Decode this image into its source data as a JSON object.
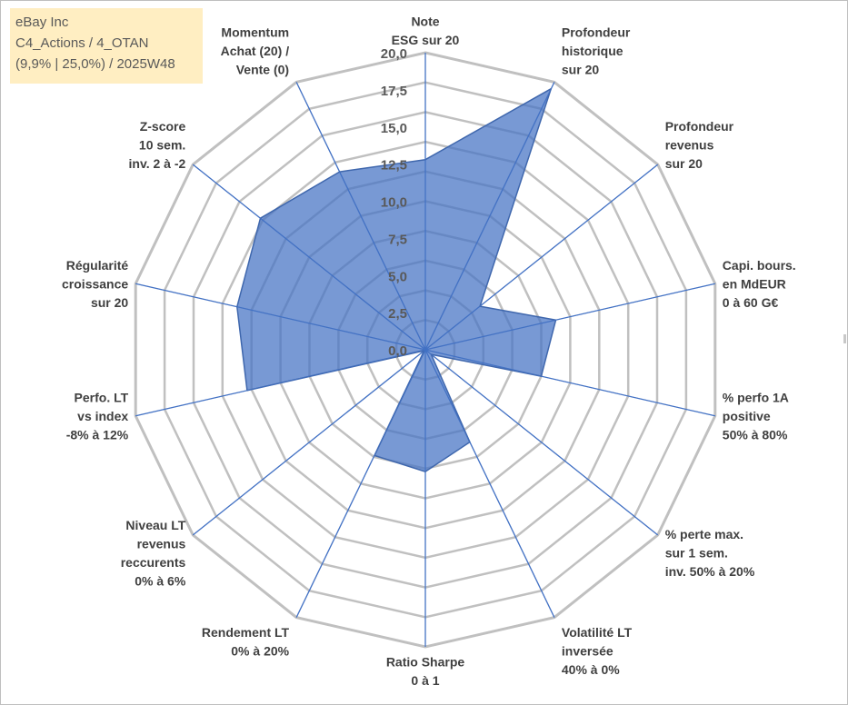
{
  "info": {
    "line1": "eBay Inc",
    "line2": "C4_Actions / 4_OTAN",
    "line3": "(9,9% | 25,0%) / 2025W48"
  },
  "chart_data": {
    "type": "radar",
    "rmax": 20,
    "ticks": [
      "0,0",
      "2,5",
      "5,0",
      "7,5",
      "10,0",
      "12,5",
      "15,0",
      "17,5",
      "20,0"
    ],
    "gridlines": 10,
    "axes": [
      [
        "Note",
        "ESG sur 20"
      ],
      [
        "Profondeur",
        "historique",
        "sur 20"
      ],
      [
        "Profondeur",
        "revenus",
        "sur 20"
      ],
      [
        "Capi. bours.",
        "en MdEUR",
        "0 à 60 G€"
      ],
      [
        "% perfo 1A",
        "positive",
        "50% à 80%"
      ],
      [
        "% perte max.",
        "sur 1 sem.",
        "inv. 50% à 20%"
      ],
      [
        "Volatilité LT",
        "inversée",
        "40% à 0%"
      ],
      [
        "Ratio Sharpe",
        "0 à 1"
      ],
      [
        "Rendement LT",
        "0% à 20%"
      ],
      [
        "Niveau LT",
        "revenus",
        "reccurents",
        "0% à 6%"
      ],
      [
        "Perfo. LT",
        "vs index",
        "-8% à 12%"
      ],
      [
        "Régularité",
        "croissance",
        "sur 20"
      ],
      [
        "Z-score",
        "10 sem.",
        "inv. 2 à -2"
      ],
      [
        "Momentum",
        "Achat (20) /",
        "Vente (0)"
      ]
    ],
    "values": [
      12.8,
      19.5,
      4.7,
      9.0,
      8.0,
      0.5,
      6.9,
      8.2,
      7.9,
      0.1,
      12.3,
      13.0,
      14.2,
      13.3
    ],
    "series_color": "#4472c4"
  }
}
